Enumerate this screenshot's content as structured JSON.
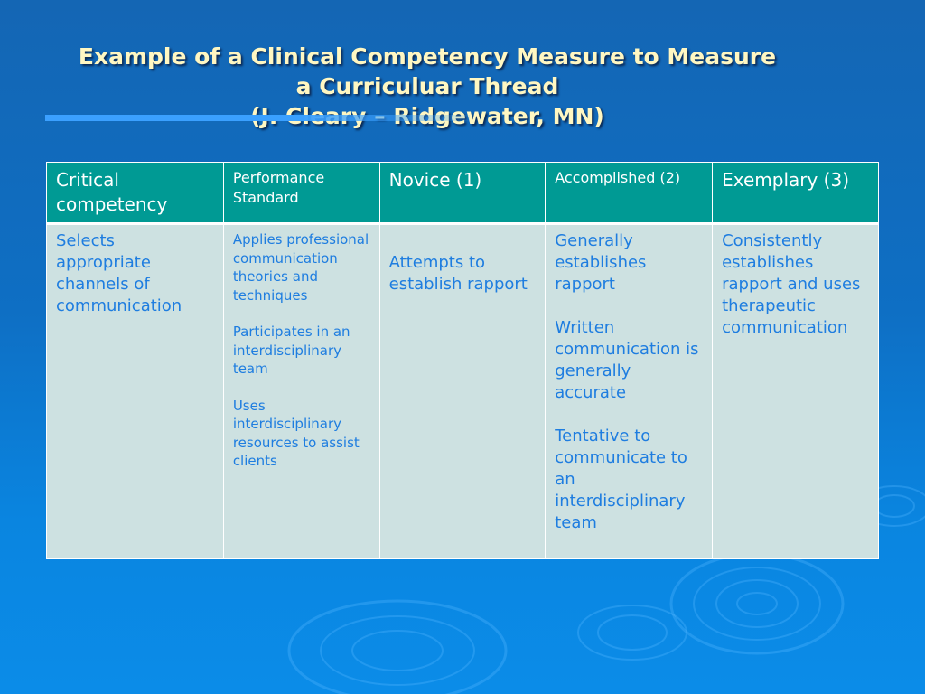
{
  "slide": {
    "title_lines": [
      "Example of a Clinical Competency Measure to Measure",
      "a Curriculuar Thread",
      "(J. Cleary – Ridgewater, MN)"
    ]
  },
  "table": {
    "headers": [
      {
        "label": "Critical competency"
      },
      {
        "label": "Performance Standard"
      },
      {
        "label": "Novice (1)"
      },
      {
        "label": "Accomplished (2)"
      },
      {
        "label": "Exemplary (3)"
      }
    ],
    "row": {
      "critical_competency": [
        "Selects appropriate channels of communication"
      ],
      "performance_standard": [
        "Applies professional communication theories and techniques",
        "Participates in an interdisciplinary team",
        "Uses interdisciplinary resources to assist clients"
      ],
      "novice": [
        "Attempts to establish rapport"
      ],
      "accomplished": [
        "Generally establishes rapport",
        "Written communication is generally accurate",
        "Tentative to communicate to an interdisciplinary team"
      ],
      "exemplary": [
        "Consistently establishes rapport and uses therapeutic communication"
      ]
    }
  },
  "colors": {
    "background": "#0e6fc4",
    "title_text": "#fff7c2",
    "header_fill": "#009a94",
    "header_text": "#ffffff",
    "cell_fill": "#cde1e1",
    "cell_text": "#1e7de0"
  }
}
